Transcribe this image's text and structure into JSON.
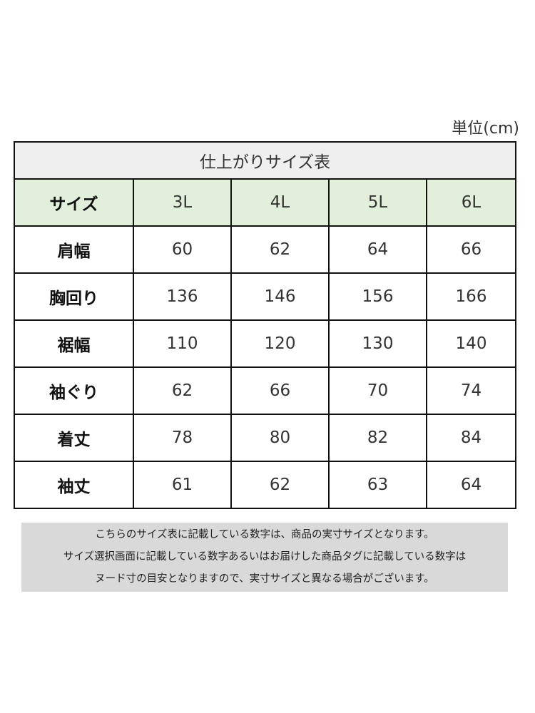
{
  "unit_label": "単位(cm)",
  "table": {
    "title": "仕上がりサイズ表",
    "header": [
      "サイズ",
      "3L",
      "4L",
      "5L",
      "6L"
    ],
    "rows": [
      {
        "label": "肩幅",
        "values": [
          "60",
          "62",
          "64",
          "66"
        ]
      },
      {
        "label": "胸回り",
        "values": [
          "136",
          "146",
          "156",
          "166"
        ]
      },
      {
        "label": "裾幅",
        "values": [
          "110",
          "120",
          "130",
          "140"
        ]
      },
      {
        "label": "袖ぐり",
        "values": [
          "62",
          "66",
          "70",
          "74"
        ]
      },
      {
        "label": "着丈",
        "values": [
          "78",
          "80",
          "82",
          "84"
        ]
      },
      {
        "label": "袖丈",
        "values": [
          "61",
          "62",
          "63",
          "64"
        ]
      }
    ]
  },
  "note": {
    "lines": [
      "こちらのサイズ表に記載している数字は、商品の実寸サイズとなります。",
      "サイズ選択画面に記載している数字あるいはお届けした商品タグに記載している数字は",
      "ヌード寸の目安となりますので、実寸サイズと異なる場合がございます。"
    ]
  },
  "colors": {
    "header_bg": "#e2efda",
    "title_bg": "#efefef",
    "note_bg": "#d9d9d9"
  }
}
